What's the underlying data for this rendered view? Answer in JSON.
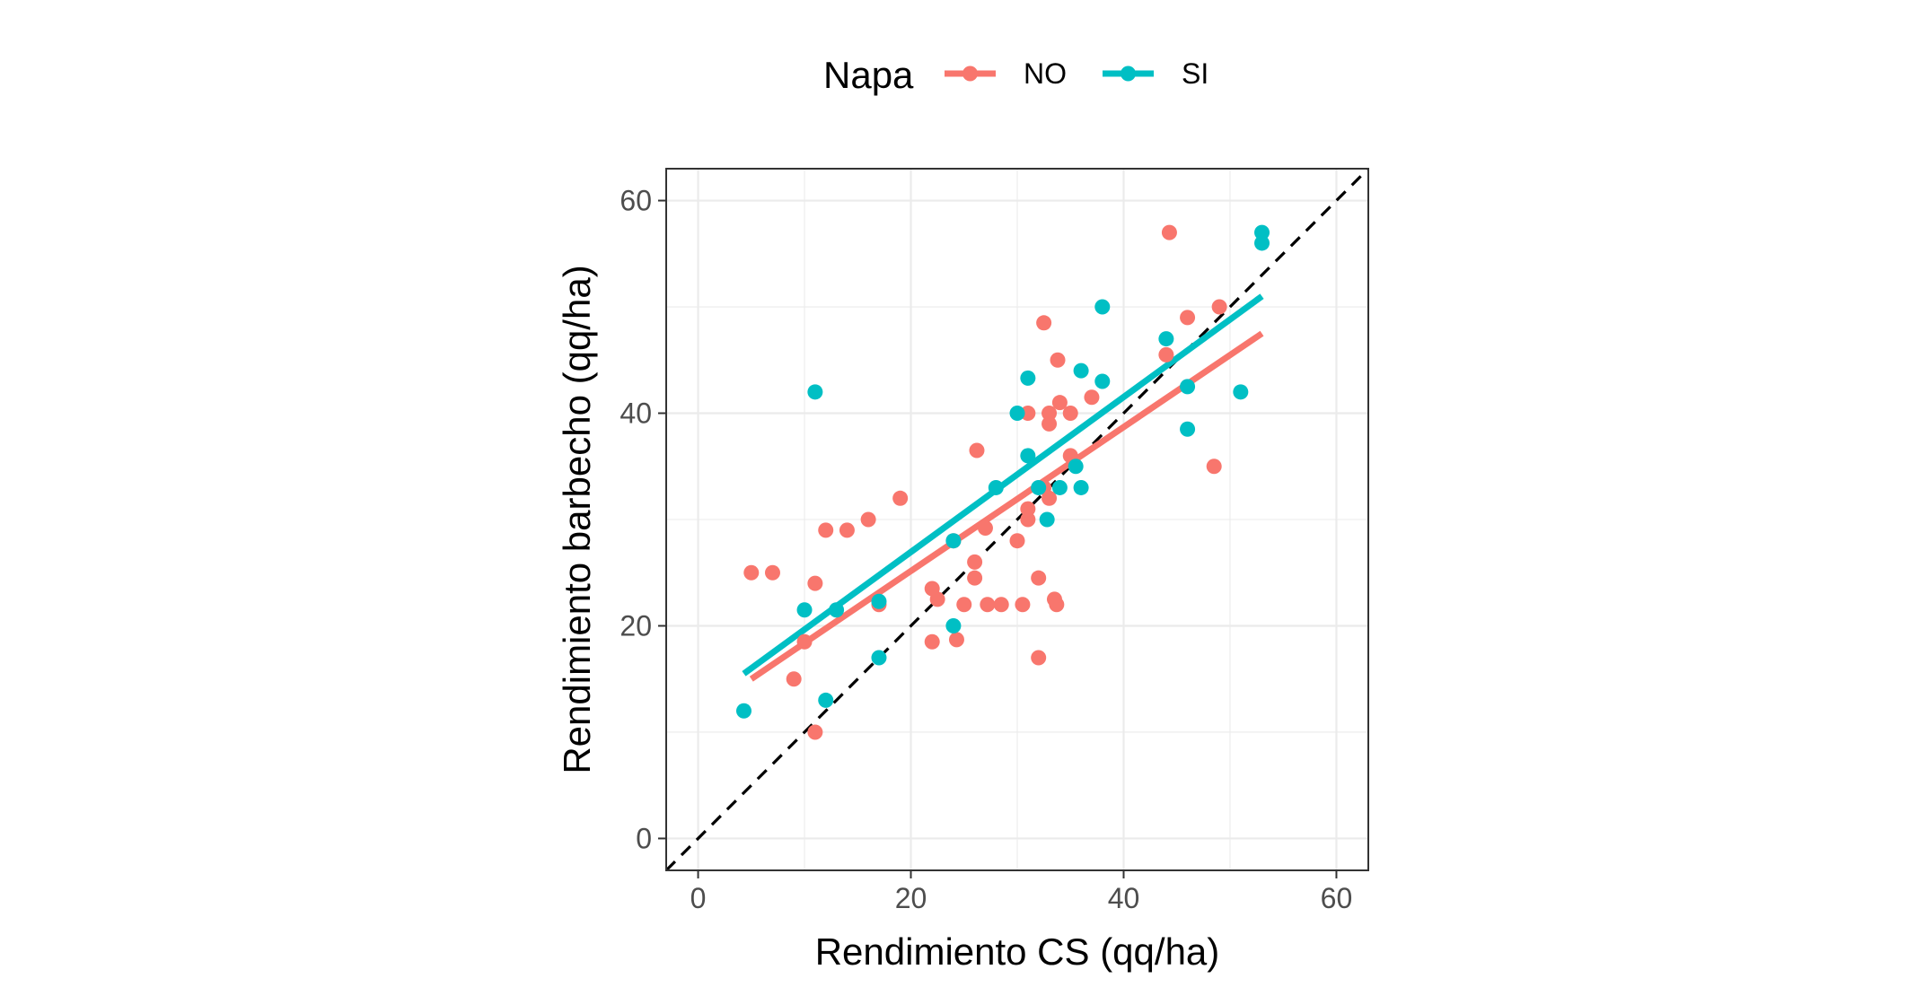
{
  "chart_data": {
    "type": "scatter",
    "xlabel": "Rendimiento CS (qq/ha)",
    "ylabel": "Rendimiento barbecho (qq/ha)",
    "xlim": [
      -3,
      63
    ],
    "ylim": [
      -3,
      63
    ],
    "x_ticks": [
      0,
      20,
      40,
      60
    ],
    "y_ticks": [
      0,
      20,
      40,
      60
    ],
    "x_tick_labels": [
      "0",
      "20",
      "40",
      "60"
    ],
    "y_tick_labels": [
      "0",
      "20",
      "40",
      "60"
    ],
    "grid": true,
    "legend": {
      "title": "Napa",
      "position": "top"
    },
    "reference_line": {
      "type": "identity",
      "style": "dashed",
      "color": "#000000"
    },
    "series": [
      {
        "name": "NO",
        "color": "#F8766D",
        "points": [
          [
            5,
            25
          ],
          [
            7,
            25
          ],
          [
            9,
            15
          ],
          [
            10,
            18.5
          ],
          [
            11,
            24
          ],
          [
            11,
            10
          ],
          [
            12,
            29
          ],
          [
            14,
            29
          ],
          [
            16,
            30
          ],
          [
            17,
            22
          ],
          [
            19,
            32
          ],
          [
            22,
            18.5
          ],
          [
            22,
            23.5
          ],
          [
            22.5,
            22.5
          ],
          [
            24,
            28
          ],
          [
            24.3,
            18.7
          ],
          [
            25,
            22
          ],
          [
            26,
            26
          ],
          [
            26,
            24.5
          ],
          [
            26.2,
            36.5
          ],
          [
            27,
            29.2
          ],
          [
            27.2,
            22
          ],
          [
            28.5,
            22
          ],
          [
            30,
            28
          ],
          [
            30.5,
            22
          ],
          [
            31,
            30
          ],
          [
            31,
            31
          ],
          [
            31,
            40
          ],
          [
            32,
            24.5
          ],
          [
            32,
            17
          ],
          [
            32.5,
            48.5
          ],
          [
            32.5,
            33
          ],
          [
            33,
            32
          ],
          [
            33,
            39
          ],
          [
            33,
            40
          ],
          [
            33.5,
            22.5
          ],
          [
            33.7,
            22
          ],
          [
            33.8,
            45
          ],
          [
            34,
            41
          ],
          [
            35,
            40
          ],
          [
            35,
            36
          ],
          [
            37,
            41.5
          ],
          [
            44,
            45.5
          ],
          [
            44.3,
            57
          ],
          [
            46,
            49
          ],
          [
            48.5,
            35
          ],
          [
            49,
            50
          ]
        ],
        "trend": {
          "x_start": 5,
          "y_start": 15,
          "x_end": 53,
          "y_end": 47.5
        }
      },
      {
        "name": "SI",
        "color": "#00BFC4",
        "points": [
          [
            4.3,
            12
          ],
          [
            10,
            21.5
          ],
          [
            11,
            42
          ],
          [
            12,
            13
          ],
          [
            13,
            21.5
          ],
          [
            17,
            22.3
          ],
          [
            17,
            17
          ],
          [
            24,
            20
          ],
          [
            24,
            28
          ],
          [
            28,
            33
          ],
          [
            30,
            40
          ],
          [
            31,
            43.3
          ],
          [
            31,
            36
          ],
          [
            32,
            33
          ],
          [
            32.8,
            30
          ],
          [
            34,
            33
          ],
          [
            35.5,
            35
          ],
          [
            36,
            44
          ],
          [
            36,
            33
          ],
          [
            38,
            43
          ],
          [
            38,
            50
          ],
          [
            44,
            47
          ],
          [
            46,
            42.5
          ],
          [
            46,
            38.5
          ],
          [
            51,
            42
          ],
          [
            53,
            57
          ],
          [
            53,
            56
          ]
        ],
        "trend": {
          "x_start": 4.3,
          "y_start": 15.5,
          "x_end": 53,
          "y_end": 51
        }
      }
    ]
  }
}
